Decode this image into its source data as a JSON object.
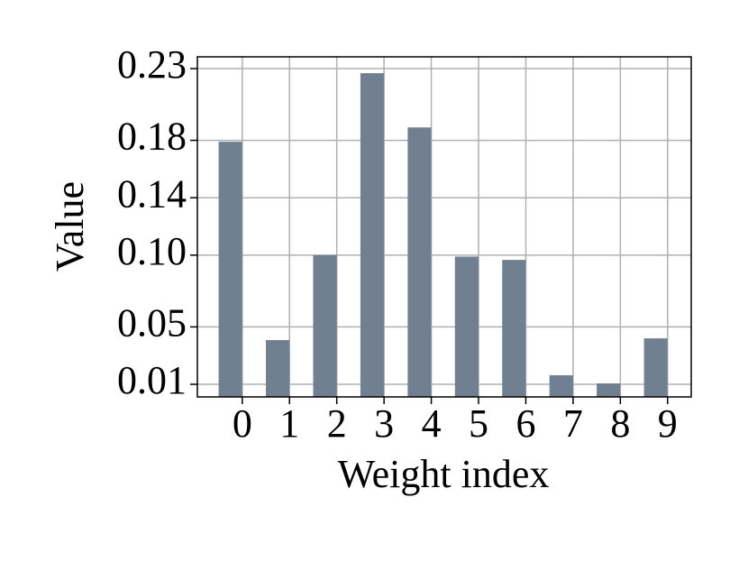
{
  "chart_data": {
    "type": "bar",
    "x_label": "Weight index",
    "y_label": "Value",
    "x": [
      0,
      1,
      2,
      3,
      4,
      5,
      6,
      7,
      8,
      9
    ],
    "values": [
      0.179,
      0.0408,
      0.1,
      0.2268,
      0.189,
      0.099,
      0.0967,
      0.0163,
      0.0106,
      0.042
    ],
    "color": "#708090",
    "xlim": [
      -0.95,
      9.5
    ],
    "xticks": [
      0,
      1,
      2,
      3,
      4,
      5,
      6,
      7,
      8,
      9
    ],
    "ylim": [
      0.0012,
      0.2382
    ],
    "yticks": [
      0.01,
      0.05,
      {
        "value": 0.1,
        "label": "0.10"
      },
      0.14,
      0.18,
      0.23
    ],
    "grid": true
  }
}
